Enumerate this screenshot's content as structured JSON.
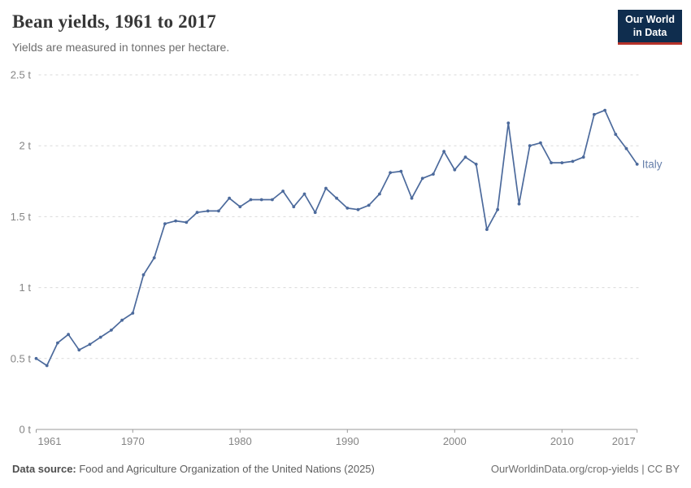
{
  "header": {
    "title": "Bean yields, 1961 to 2017",
    "subtitle": "Yields are measured in tonnes per hectare.",
    "logo": {
      "line1": "Our World",
      "line2": "in Data",
      "bg_color": "#0f2d4e",
      "accent_color": "#b5322a"
    }
  },
  "chart_data": {
    "type": "line",
    "title": "Bean yields, 1961 to 2017",
    "xlabel": "",
    "ylabel": "tonnes per hectare",
    "xlim": [
      1961,
      2017
    ],
    "ylim": [
      0,
      2.5
    ],
    "grid": true,
    "legend_position": "end-of-line",
    "grid_color": "#d9d9d9",
    "axis_color": "#9a9a9a",
    "tick_label_color": "#858585",
    "yticks": [
      {
        "value": 0,
        "label": "0 t"
      },
      {
        "value": 0.5,
        "label": "0.5 t"
      },
      {
        "value": 1,
        "label": "1 t"
      },
      {
        "value": 1.5,
        "label": "1.5 t"
      },
      {
        "value": 2,
        "label": "2 t"
      },
      {
        "value": 2.5,
        "label": "2.5 t"
      }
    ],
    "xticks": [
      {
        "value": 1961,
        "label": "1961"
      },
      {
        "value": 1970,
        "label": "1970"
      },
      {
        "value": 1980,
        "label": "1980"
      },
      {
        "value": 1990,
        "label": "1990"
      },
      {
        "value": 2000,
        "label": "2000"
      },
      {
        "value": 2010,
        "label": "2010"
      },
      {
        "value": 2017,
        "label": "2017"
      }
    ],
    "series": [
      {
        "name": "Italy",
        "color": "#4C6A9C",
        "x": [
          1961,
          1962,
          1963,
          1964,
          1965,
          1966,
          1967,
          1968,
          1969,
          1970,
          1971,
          1972,
          1973,
          1974,
          1975,
          1976,
          1977,
          1978,
          1979,
          1980,
          1981,
          1982,
          1983,
          1984,
          1985,
          1986,
          1987,
          1988,
          1989,
          1990,
          1991,
          1992,
          1993,
          1994,
          1995,
          1996,
          1997,
          1998,
          1999,
          2000,
          2001,
          2002,
          2003,
          2004,
          2005,
          2006,
          2007,
          2008,
          2009,
          2010,
          2011,
          2012,
          2013,
          2014,
          2015,
          2016,
          2017
        ],
        "values": [
          0.5,
          0.45,
          0.61,
          0.67,
          0.56,
          0.6,
          0.65,
          0.7,
          0.77,
          0.82,
          1.09,
          1.21,
          1.45,
          1.47,
          1.46,
          1.53,
          1.54,
          1.54,
          1.63,
          1.57,
          1.62,
          1.62,
          1.62,
          1.68,
          1.57,
          1.66,
          1.53,
          1.7,
          1.63,
          1.56,
          1.55,
          1.58,
          1.66,
          1.81,
          1.82,
          1.63,
          1.77,
          1.8,
          1.96,
          1.83,
          1.92,
          1.87,
          1.41,
          1.55,
          2.16,
          1.59,
          2.0,
          2.02,
          1.88,
          1.88,
          1.89,
          1.92,
          2.22,
          2.25,
          2.08,
          1.98,
          1.87
        ]
      }
    ]
  },
  "footer": {
    "source_label": "Data source:",
    "source_text": " Food and Agriculture Organization of the United Nations (2025)",
    "credit": "OurWorldinData.org/crop-yields | CC BY"
  }
}
